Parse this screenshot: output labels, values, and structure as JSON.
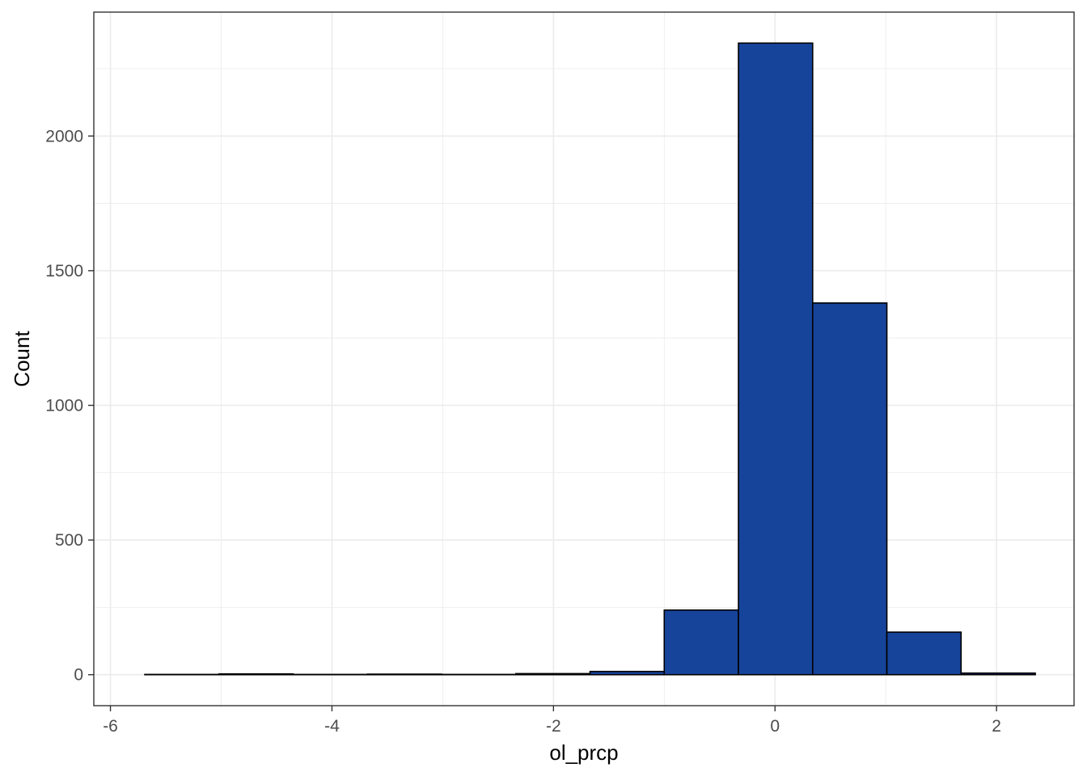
{
  "chart_data": {
    "type": "bar",
    "subtype": "histogram",
    "title": "",
    "xlabel": "ol_prcp",
    "ylabel": "Count",
    "xlim": [
      -6.15,
      2.7
    ],
    "ylim": [
      -115,
      2460
    ],
    "x_ticks": [
      -6,
      -4,
      -2,
      0,
      2
    ],
    "y_ticks": [
      0,
      500,
      1000,
      1500,
      2000
    ],
    "x_tick_labels": [
      "-6",
      "-4",
      "-2",
      "0",
      "2"
    ],
    "y_tick_labels": [
      "0",
      "500",
      "1000",
      "1500",
      "2000"
    ],
    "grid": true,
    "legend": "none",
    "bins": [
      {
        "x0": -5.69,
        "x1": -5.02,
        "count": 1
      },
      {
        "x0": -5.02,
        "x1": -4.35,
        "count": 3
      },
      {
        "x0": -4.35,
        "x1": -3.68,
        "count": 1
      },
      {
        "x0": -3.68,
        "x1": -3.01,
        "count": 2
      },
      {
        "x0": -3.01,
        "x1": -2.34,
        "count": 1
      },
      {
        "x0": -2.34,
        "x1": -1.67,
        "count": 4
      },
      {
        "x0": -1.67,
        "x1": -1.0,
        "count": 12
      },
      {
        "x0": -1.0,
        "x1": -0.33,
        "count": 240
      },
      {
        "x0": -0.33,
        "x1": 0.34,
        "count": 2345
      },
      {
        "x0": 0.34,
        "x1": 1.01,
        "count": 1380
      },
      {
        "x0": 1.01,
        "x1": 1.68,
        "count": 158
      },
      {
        "x0": 1.68,
        "x1": 2.35,
        "count": 6
      }
    ],
    "colors": {
      "bar_fill": "#17449b",
      "bar_stroke": "#000000",
      "grid": "#ebebeb",
      "panel_border": "#333333",
      "tick_text": "#4d4d4d"
    }
  }
}
